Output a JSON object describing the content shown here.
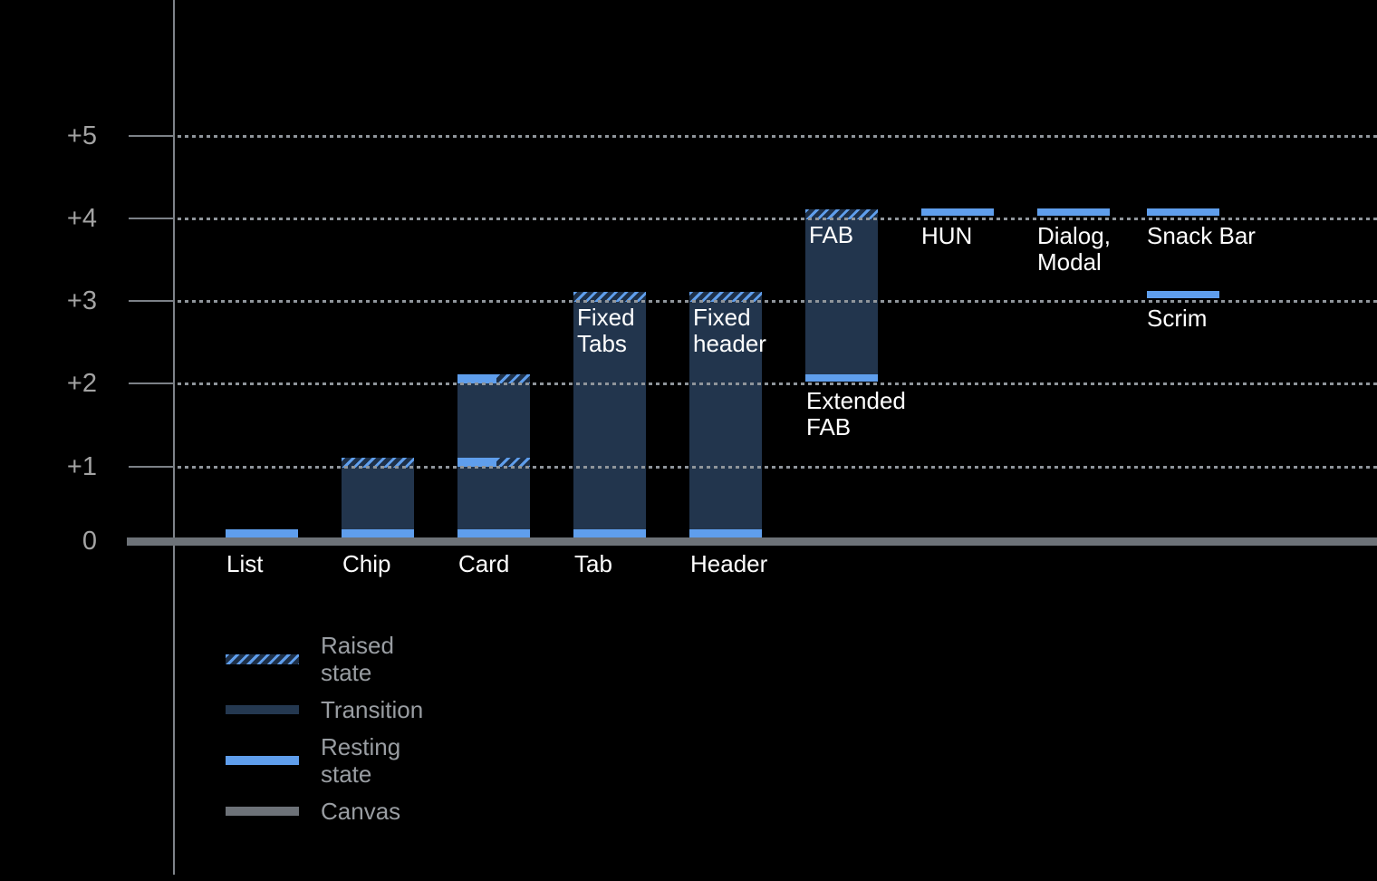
{
  "chart_data": {
    "type": "bar",
    "title": "",
    "ylim": [
      0,
      5.5
    ],
    "grid": "horizontal-dotted",
    "legend_position": "bottom-left",
    "y_axis": {
      "ticks": [
        {
          "label": "+5",
          "value": 5
        },
        {
          "label": "+4",
          "value": 4
        },
        {
          "label": "+3",
          "value": 3
        },
        {
          "label": "+2",
          "value": 2
        },
        {
          "label": "+1",
          "value": 1
        },
        {
          "label": "0",
          "value": 0
        }
      ]
    },
    "components": [
      {
        "id": "list",
        "col": 0,
        "axis_label": "List",
        "bands": [
          {
            "kind": "resting",
            "elev": 0
          }
        ]
      },
      {
        "id": "chip",
        "col": 1,
        "axis_label": "Chip",
        "bar": {
          "from": 0,
          "to": 1
        },
        "bands": [
          {
            "kind": "raised",
            "elev": 1
          },
          {
            "kind": "resting",
            "elev": 0
          }
        ]
      },
      {
        "id": "card",
        "col": 2,
        "axis_label": "Card",
        "bar": {
          "from": 0,
          "to": 2
        },
        "bands": [
          {
            "kind": "resting-raised",
            "elev": 2
          },
          {
            "kind": "resting-raised",
            "elev": 1
          },
          {
            "kind": "resting",
            "elev": 0
          }
        ]
      },
      {
        "id": "tab",
        "col": 3,
        "axis_label": "Tab",
        "bar": {
          "from": 0,
          "to": 3
        },
        "inner_lines": [
          "Fixed",
          "Tabs"
        ],
        "bands": [
          {
            "kind": "raised",
            "elev": 3
          },
          {
            "kind": "resting",
            "elev": 0
          }
        ]
      },
      {
        "id": "header",
        "col": 4,
        "axis_label": "Header",
        "bar": {
          "from": 0,
          "to": 3
        },
        "inner_lines": [
          "Fixed",
          "header"
        ],
        "bands": [
          {
            "kind": "raised",
            "elev": 3
          },
          {
            "kind": "resting",
            "elev": 0
          }
        ]
      },
      {
        "id": "fab",
        "col": 5,
        "bar": {
          "from": 2,
          "to": 4
        },
        "inner_lines": [
          "FAB"
        ],
        "below_lines": [
          "Extended",
          "FAB"
        ],
        "bands": [
          {
            "kind": "raised",
            "elev": 4
          },
          {
            "kind": "resting-in-bar",
            "elev": 2
          }
        ]
      },
      {
        "id": "hun",
        "col": 6,
        "under_lines": [
          "HUN"
        ],
        "bands": [
          {
            "kind": "resting-float",
            "elev": 4
          }
        ]
      },
      {
        "id": "dialog-modal",
        "col": 7,
        "under_lines": [
          "Dialog,",
          "Modal"
        ],
        "bands": [
          {
            "kind": "resting-float",
            "elev": 4
          }
        ]
      },
      {
        "id": "snack-bar",
        "col": 8,
        "under_lines": [
          "Snack Bar"
        ],
        "bands": [
          {
            "kind": "resting-float",
            "elev": 4
          }
        ]
      },
      {
        "id": "scrim",
        "col": 8,
        "under_lines": [
          "Scrim"
        ],
        "bands": [
          {
            "kind": "resting-float",
            "elev": 3
          }
        ]
      }
    ],
    "legend": [
      {
        "label": "Raised state",
        "style": "hatch"
      },
      {
        "label": "Transition",
        "style": "transition"
      },
      {
        "label": "Resting state",
        "style": "resting"
      },
      {
        "label": "Canvas",
        "style": "canvas"
      }
    ],
    "colors": {
      "background": "#000000",
      "resting_state": "#5f9eec",
      "transition": "#22354d",
      "canvas": "#6d7278",
      "hatch_dark": "#1d2f47",
      "grid_dots": "#8f959b",
      "axis": "#7f848a",
      "tick_label": "#a3a3a3",
      "bar_label": "#ffffff",
      "legend_label": "#999da2"
    }
  }
}
